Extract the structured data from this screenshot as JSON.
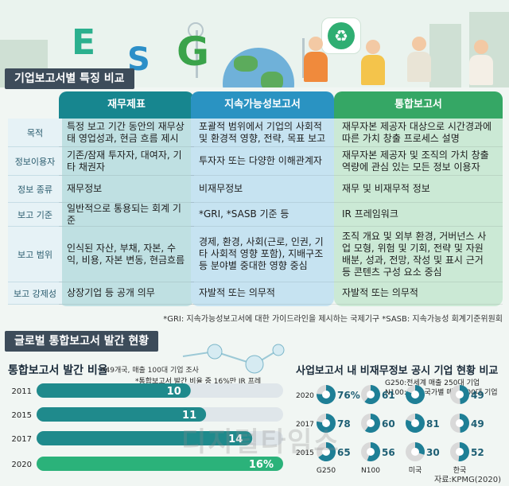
{
  "hero": {
    "letters": [
      "E",
      "S",
      "G"
    ]
  },
  "section1": {
    "title": "기업보고서별 특징 비교"
  },
  "table": {
    "columns": [
      {
        "label": "재무제표",
        "color": "#17868f",
        "light": "#bfe0e2"
      },
      {
        "label": "지속가능성보고서",
        "color": "#2a93c2",
        "light": "#c6e3f1"
      },
      {
        "label": "통합보고서",
        "color": "#35a765",
        "light": "#cbe9d5"
      }
    ],
    "rows": [
      {
        "label": "목적",
        "cells": [
          "특정 보고 기간 동안의 재무상태 영업성과, 현금 흐름 제시",
          "포괄적 범위에서 기업의 사회적 및 환경적 영향, 전략, 목표 보고",
          "재무자본 제공자 대상으로 시간경과에 따른 가치 창출 프로세스 설명"
        ]
      },
      {
        "label": "정보이용자",
        "cells": [
          "기존/잠재 투자자, 대여자, 기타 채권자",
          "투자자 또는 다양한 이해관계자",
          "재무자본 제공자 및 조직의 가치 창출 역량에 관심 있는 모든 정보 이용자"
        ]
      },
      {
        "label": "정보 종류",
        "cells": [
          "재무정보",
          "비재무정보",
          "재무 및 비재무적 정보"
        ]
      },
      {
        "label": "보고 기준",
        "cells": [
          "일반적으로 통용되는 회계 기준",
          "*GRI, *SASB 기준 등",
          "IR 프레임워크"
        ]
      },
      {
        "label": "보고 범위",
        "cells": [
          "인식된 자산, 부채, 자본, 수익, 비용, 자본 변동, 현금흐름",
          "경제, 환경, 사회(근로, 인권, 기타 사회적 영향 포함), 지배구조 등 분야별 중대한 영향 중심",
          "조직 개요 및 외부 환경, 거버넌스 사업 모형, 위험 및 기회, 전략 및 자원 배분, 성과, 전망, 작성 및 표시 근거 등 콘텐츠 구성 요소 중심"
        ]
      },
      {
        "label": "보고 강제성",
        "cells": [
          "상장기업 등 공개 의무",
          "자발적 또는 의무적",
          "자발적 또는 의무적"
        ]
      }
    ],
    "footnote": "*GRI: 지속가능성보고서에 대한 가이드라인을 제시하는 국제기구   *SASB: 지속가능성 회계기준위원회"
  },
  "section2": {
    "title": "글로벌 통합보고서 발간 현황"
  },
  "chart_data": [
    {
      "type": "bar",
      "title": "통합보고서 발간 비율",
      "subtitle": "*49개국, 매출 100대 기업 조사",
      "annotation": "*통합보고서 발간 비율 중 16%만 IR 프레임워크 적용(2020 기준)",
      "categories": [
        "2011",
        "2015",
        "2017",
        "2020"
      ],
      "values": [
        10,
        11,
        14,
        16
      ],
      "labels": [
        "10",
        "11",
        "14",
        "16%"
      ],
      "colors": [
        "#1f8a8c",
        "#1f8a8c",
        "#1f8a8c",
        "#2bb27a"
      ],
      "xlim": [
        0,
        16
      ]
    },
    {
      "type": "pie",
      "title": "사업보고서 내 비재무정보 공시 기업 현황 비교",
      "note": "G250:전세계 매출 250대 기업 N100:49개 국가별 매출 100대 기업",
      "years": [
        "2020",
        "2017",
        "2015"
      ],
      "groups": [
        "G250",
        "N100",
        "미국",
        "한국"
      ],
      "values": [
        [
          76,
          61,
          81,
          49
        ],
        [
          78,
          60,
          81,
          49
        ],
        [
          65,
          56,
          30,
          52
        ]
      ],
      "labels": [
        [
          "76%",
          "61",
          "",
          "49"
        ],
        [
          "78",
          "60",
          "81",
          "49"
        ],
        [
          "65",
          "56",
          "30",
          "52"
        ]
      ],
      "color": "#1e7f96",
      "rest_color": "#d9d9d9"
    }
  ],
  "source": "자료:KPMG(2020)",
  "watermark": "디지털타임스"
}
